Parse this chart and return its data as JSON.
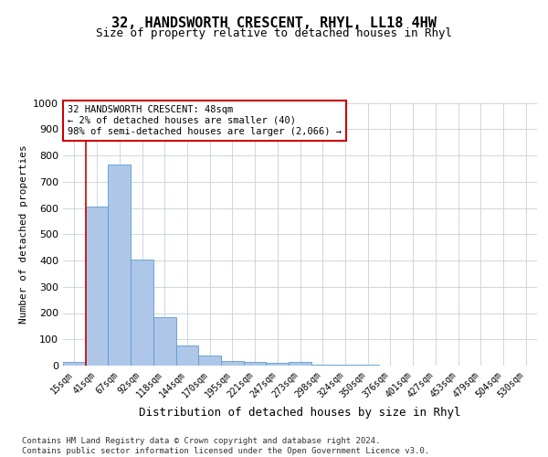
{
  "title": "32, HANDSWORTH CRESCENT, RHYL, LL18 4HW",
  "subtitle": "Size of property relative to detached houses in Rhyl",
  "xlabel": "Distribution of detached houses by size in Rhyl",
  "ylabel": "Number of detached properties",
  "categories": [
    "15sqm",
    "41sqm",
    "67sqm",
    "92sqm",
    "118sqm",
    "144sqm",
    "170sqm",
    "195sqm",
    "221sqm",
    "247sqm",
    "273sqm",
    "298sqm",
    "324sqm",
    "350sqm",
    "376sqm",
    "401sqm",
    "427sqm",
    "453sqm",
    "479sqm",
    "504sqm",
    "530sqm"
  ],
  "values": [
    13,
    605,
    765,
    405,
    185,
    75,
    37,
    17,
    13,
    10,
    13,
    5,
    3,
    2,
    1,
    1,
    0,
    0,
    0,
    0,
    0
  ],
  "bar_color": "#aec6e8",
  "bar_edge_color": "#5b9bd5",
  "grid_color": "#c8d0d8",
  "vline_x": 0.5,
  "vline_color": "#cc0000",
  "annotation_text": "32 HANDSWORTH CRESCENT: 48sqm\n← 2% of detached houses are smaller (40)\n98% of semi-detached houses are larger (2,066) →",
  "annotation_box_color": "#ffffff",
  "annotation_box_edge": "#cc0000",
  "footer_text": "Contains HM Land Registry data © Crown copyright and database right 2024.\nContains public sector information licensed under the Open Government Licence v3.0.",
  "ylim": [
    0,
    1000
  ],
  "yticks": [
    0,
    100,
    200,
    300,
    400,
    500,
    600,
    700,
    800,
    900,
    1000
  ],
  "background_color": "#ffffff",
  "title_fontsize": 11,
  "subtitle_fontsize": 9,
  "tick_fontsize": 7,
  "ylabel_fontsize": 8,
  "xlabel_fontsize": 9,
  "footer_fontsize": 6.5,
  "annotation_fontsize": 7.5
}
